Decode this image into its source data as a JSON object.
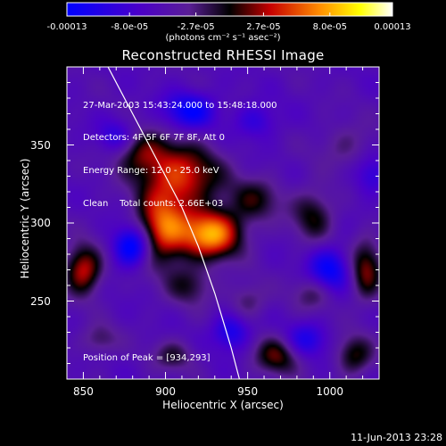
{
  "chart_data": {
    "type": "heatmap",
    "title": "Reconstructed RHESSI Image",
    "xlabel": "Heliocentric X (arcsec)",
    "ylabel": "Heliocentric Y (arcsec)",
    "xlim": [
      840,
      1030
    ],
    "ylim": [
      200,
      400
    ],
    "xticks": [
      850,
      900,
      950,
      1000
    ],
    "yticks": [
      250,
      300,
      350
    ],
    "colorbar": {
      "min": -0.00013,
      "max": 0.00013,
      "tick_labels": [
        "-0.00013",
        "-8.0e-05",
        "-2.7e-05",
        "2.7e-05",
        "8.0e-05",
        "0.00013"
      ],
      "tick_values": [
        -0.00013,
        -8e-05,
        -2.7e-05,
        2.7e-05,
        8e-05,
        0.00013
      ],
      "units": "(photons cm⁻² s⁻¹ asec⁻²)",
      "colors": [
        "#0000ff",
        "#4b00c8",
        "#000000",
        "#cc0000",
        "#ff8c00",
        "#ffff00",
        "#ffffff"
      ]
    },
    "annotations": [
      "27-Mar-2003 15:43:24.000 to 15:48:18.000",
      "Detectors: 4F 5F 6F 7F 8F, Att 0",
      "Energy Range: 12.0 - 25.0 keV",
      "Clean    Total counts: 2.66E+03"
    ],
    "peak_label": "Position of Peak = [934,293]",
    "peak": [
      934,
      293
    ],
    "limb_curve": [
      [
        865,
        400
      ],
      [
        880,
        370
      ],
      [
        895,
        340
      ],
      [
        910,
        310
      ],
      [
        920,
        285
      ],
      [
        930,
        255
      ],
      [
        940,
        220
      ],
      [
        945,
        200
      ]
    ],
    "sources": [
      {
        "x": 928,
        "y": 293,
        "amp": 1.0,
        "sx": 13,
        "sy": 11
      },
      {
        "x": 898,
        "y": 296,
        "amp": 0.82,
        "sx": 11,
        "sy": 16
      },
      {
        "x": 910,
        "y": 330,
        "amp": 0.72,
        "sx": 17,
        "sy": 14
      },
      {
        "x": 885,
        "y": 345,
        "amp": 0.45,
        "sx": 12,
        "sy": 10
      },
      {
        "x": 850,
        "y": 270,
        "amp": 0.7,
        "sx": 8,
        "sy": 11
      },
      {
        "x": 955,
        "y": 315,
        "amp": 0.38,
        "sx": 11,
        "sy": 10
      },
      {
        "x": 990,
        "y": 305,
        "amp": 0.42,
        "sx": 9,
        "sy": 12
      },
      {
        "x": 1022,
        "y": 270,
        "amp": 0.55,
        "sx": 7,
        "sy": 14
      },
      {
        "x": 1015,
        "y": 215,
        "amp": 0.45,
        "sx": 8,
        "sy": 9
      },
      {
        "x": 968,
        "y": 215,
        "amp": 0.5,
        "sx": 10,
        "sy": 9
      },
      {
        "x": 915,
        "y": 260,
        "amp": 0.35,
        "sx": 10,
        "sy": 9
      },
      {
        "x": 905,
        "y": 215,
        "amp": 0.32,
        "sx": 9,
        "sy": 7
      },
      {
        "x": 860,
        "y": 225,
        "amp": 0.28,
        "sx": 8,
        "sy": 7
      },
      {
        "x": 990,
        "y": 255,
        "amp": 0.3,
        "sx": 9,
        "sy": 8
      },
      {
        "x": 950,
        "y": 250,
        "amp": 0.28,
        "sx": 8,
        "sy": 8
      },
      {
        "x": 1010,
        "y": 350,
        "amp": 0.22,
        "sx": 12,
        "sy": 10
      }
    ],
    "sinks": [
      {
        "x": 880,
        "y": 285,
        "amp": -0.75,
        "sx": 8,
        "sy": 9
      },
      {
        "x": 1000,
        "y": 270,
        "amp": -0.55,
        "sx": 9,
        "sy": 10
      },
      {
        "x": 915,
        "y": 372,
        "amp": -0.55,
        "sx": 11,
        "sy": 8
      },
      {
        "x": 870,
        "y": 355,
        "amp": -0.35,
        "sx": 8,
        "sy": 8
      },
      {
        "x": 985,
        "y": 225,
        "amp": -0.4,
        "sx": 9,
        "sy": 8
      },
      {
        "x": 940,
        "y": 230,
        "amp": -0.45,
        "sx": 8,
        "sy": 8
      },
      {
        "x": 955,
        "y": 365,
        "amp": -0.3,
        "sx": 9,
        "sy": 8
      },
      {
        "x": 1025,
        "y": 330,
        "amp": -0.3,
        "sx": 7,
        "sy": 9
      }
    ]
  },
  "footer_date": "11-Jun-2013 23:28"
}
